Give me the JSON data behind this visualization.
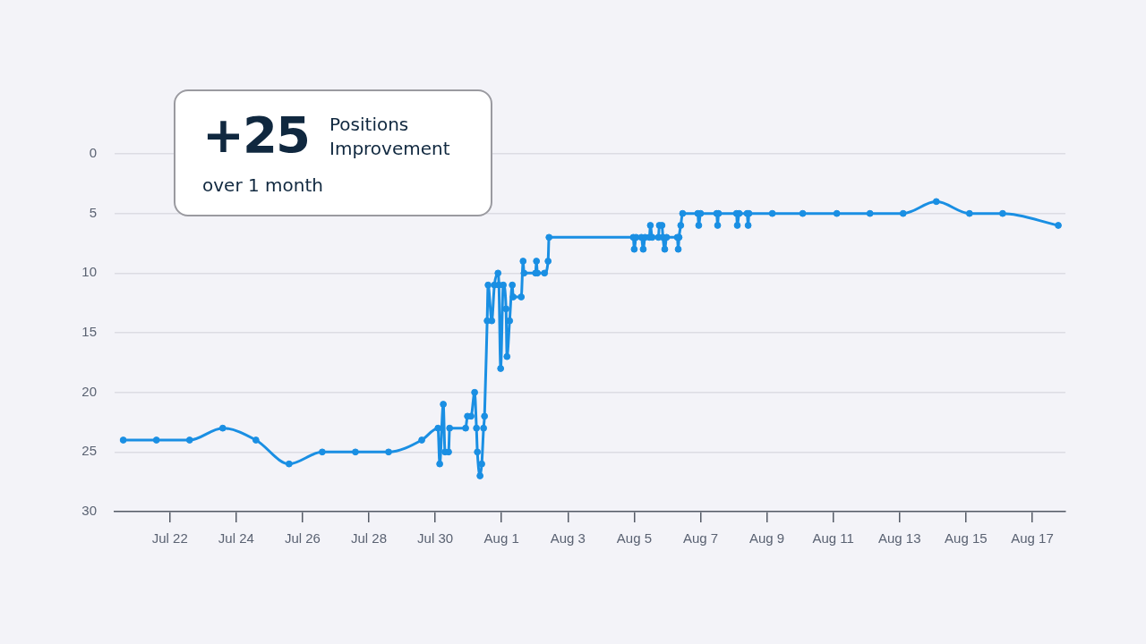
{
  "chart_data": {
    "type": "line",
    "annotations": [
      "+25",
      "Positions Improvement",
      "over 1 month"
    ],
    "x": [
      "--07-20T14:15",
      "--07-21T14:15",
      "--07-22T14:15",
      "--07-23T14:15",
      "--07-24T14:15",
      "--07-25T14:15",
      "--07-26T14:15",
      "--07-27T14:15",
      "--07-28T14:15",
      "--07-29T14:15",
      "--07-30T02:00",
      "--07-30T03:15",
      "--07-30T05:50",
      "--07-30T07:05",
      "--07-30T09:40",
      "--07-30T10:25",
      "--07-30T22:00",
      "--07-30T23:20",
      "--07-31T01:55",
      "--07-31T04:30",
      "--07-31T05:50",
      "--07-31T06:30",
      "--07-31T08:25",
      "--07-31T09:40",
      "--07-31T11:00",
      "--07-31T11:40",
      "--07-31T13:35",
      "--07-31T14:15",
      "--07-31T16:55",
      "--07-31T18:50",
      "--07-31T21:25",
      "--07-31T22:05",
      "--07-31T23:20",
      "--08-01T01:15",
      "--08-01T03:15",
      "--08-01T03:55",
      "--08-01T05:50",
      "--08-01T07:45",
      "--08-01T08:25",
      "--08-01T14:15",
      "--08-01T15:35",
      "--08-01T16:15",
      "--08-02T00:35",
      "--08-02T01:15",
      "--08-02T01:55",
      "--08-02T07:05",
      "--08-02T09:40",
      "--08-02T10:20",
      "--08-04T23:20",
      "--08-05T00:00",
      "--08-05T01:20",
      "--08-05T05:10",
      "--08-05T06:30",
      "--08-05T07:50",
      "--08-05T11:00",
      "--08-05T11:40",
      "--08-05T13:00",
      "--08-05T17:30",
      "--08-05T18:10",
      "--08-05T20:05",
      "--08-05T20:45",
      "--08-05T22:05",
      "--08-05T23:25",
      "--08-06T07:10",
      "--08-06T07:50",
      "--08-06T08:25",
      "--08-06T09:40",
      "--08-06T11:00",
      "--08-06T22:00",
      "--08-06T22:40",
      "--08-07T00:00",
      "--08-07T11:40",
      "--08-07T12:20",
      "--08-07T13:00",
      "--08-08T02:00",
      "--08-08T02:35",
      "--08-08T03:55",
      "--08-08T09:40",
      "--08-08T10:25",
      "--08-08T11:00",
      "--08-09T03:55",
      "--08-10T01:55",
      "--08-11T02:35",
      "--08-12T02:35",
      "--08-13T02:35",
      "--08-14T02:35",
      "--08-15T02:35",
      "--08-16T02:35",
      "--08-17T18:50"
    ],
    "series": [
      {
        "color": "#1a8fe3",
        "values": [
          24,
          24,
          24,
          23,
          24,
          26,
          25,
          25,
          25,
          24,
          23,
          26,
          21,
          25,
          25,
          23,
          23,
          22,
          22,
          20,
          23,
          25,
          27,
          26,
          23,
          22,
          14,
          11,
          14,
          11,
          10,
          11,
          18,
          11,
          13,
          17,
          14,
          11,
          12,
          12,
          9,
          10,
          10,
          9,
          10,
          10,
          9,
          7,
          7,
          8,
          7,
          7,
          8,
          7,
          7,
          6,
          7,
          7,
          6,
          6,
          7,
          8,
          7,
          7,
          8,
          7,
          6,
          5,
          5,
          6,
          5,
          5,
          6,
          5,
          5,
          6,
          5,
          5,
          6,
          5,
          5,
          5,
          5,
          5,
          5,
          4,
          5,
          5,
          6
        ]
      }
    ],
    "xlim": [
      "--07-20T08:00",
      "--08-18T00:00"
    ],
    "xticks": [
      {
        "value": "--07-22",
        "label": "Jul 22"
      },
      {
        "value": "--07-24",
        "label": "Jul 24"
      },
      {
        "value": "--07-26",
        "label": "Jul 26"
      },
      {
        "value": "--07-28",
        "label": "Jul 28"
      },
      {
        "value": "--07-30",
        "label": "Jul 30"
      },
      {
        "value": "--08-01",
        "label": "Aug 1"
      },
      {
        "value": "--08-03",
        "label": "Aug 3"
      },
      {
        "value": "--08-05",
        "label": "Aug 5"
      },
      {
        "value": "--08-07",
        "label": "Aug 7"
      },
      {
        "value": "--08-09",
        "label": "Aug 9"
      },
      {
        "value": "--08-11",
        "label": "Aug 11"
      },
      {
        "value": "--08-13",
        "label": "Aug 13"
      },
      {
        "value": "--08-15",
        "label": "Aug 15"
      },
      {
        "value": "--08-17",
        "label": "Aug 17"
      }
    ],
    "ylim": [
      30,
      0
    ],
    "yticks": [
      0,
      5,
      10,
      15,
      20,
      25,
      30
    ],
    "grid": "y",
    "legend": false,
    "marker": "circle",
    "line_style": "solid"
  }
}
